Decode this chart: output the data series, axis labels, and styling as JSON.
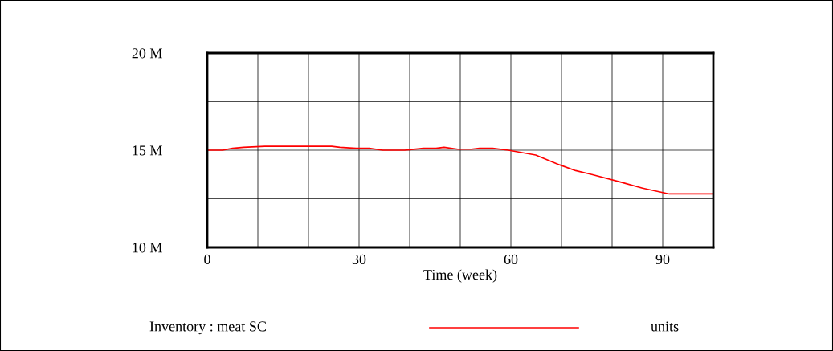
{
  "chart_data": {
    "type": "line",
    "xlabel": "Time (week)",
    "annotations": [
      "units"
    ],
    "xlim": [
      0,
      100
    ],
    "ylim": [
      10000000,
      20000000
    ],
    "xticks": [
      0,
      {
        "value": 10,
        "label": null
      },
      {
        "value": 20,
        "label": null
      },
      30,
      {
        "value": 40,
        "label": null
      },
      {
        "value": 50,
        "label": null
      },
      60,
      {
        "value": 70,
        "label": null
      },
      {
        "value": 80,
        "label": null
      },
      90
    ],
    "yticks": [
      {
        "value": 10000000,
        "label": "10 M"
      },
      {
        "value": 12500000,
        "label": null
      },
      {
        "value": 15000000,
        "label": "15 M"
      },
      {
        "value": 17500000,
        "label": null
      },
      {
        "value": 20000000,
        "label": "20 M"
      }
    ],
    "grid": true,
    "legend": "bottom",
    "x": [
      0,
      3,
      5,
      7.2,
      11.4,
      24.6,
      26.2,
      29.4,
      32,
      34.7,
      39,
      42.7,
      45.2,
      46.8,
      49.5,
      52.2,
      53.8,
      56.4,
      59.5,
      64.9,
      69.6,
      72.8,
      76,
      81.8,
      86,
      91.3,
      100
    ],
    "series": [
      {
        "name": "Inventory : meat SC",
        "color": "#ff0000",
        "values": [
          15000000,
          15000000,
          15100000,
          15150000,
          15200000,
          15200000,
          15150000,
          15100000,
          15100000,
          15000000,
          15000000,
          15100000,
          15100000,
          15150000,
          15050000,
          15050000,
          15100000,
          15100000,
          15000000,
          14750000,
          14250000,
          13950000,
          13750000,
          13350000,
          13050000,
          12750000,
          12750000
        ]
      }
    ]
  }
}
